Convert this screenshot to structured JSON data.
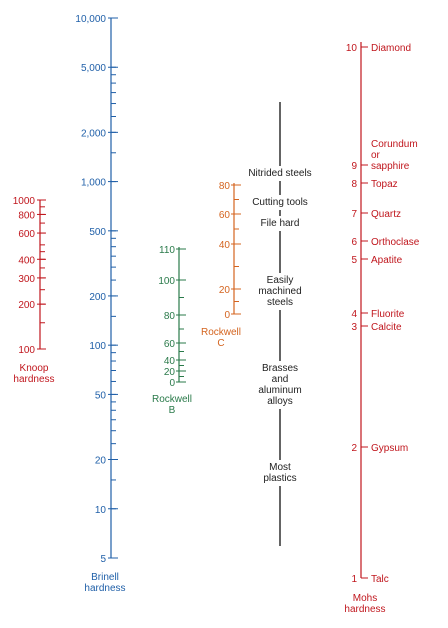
{
  "colors": {
    "brinell": "#1f5fa8",
    "knoop": "#c0161d",
    "mohs": "#c0161d",
    "rockwell_b": "#2a7a4a",
    "rockwell_c": "#d4641f",
    "center": "#222222"
  },
  "brinell": {
    "caption": [
      "Brinell",
      "hardness"
    ],
    "labels": [
      {
        "text": "10,000",
        "value": 10000
      },
      {
        "text": "5,000",
        "value": 5000
      },
      {
        "text": "2,000",
        "value": 2000
      },
      {
        "text": "1,000",
        "value": 1000
      },
      {
        "text": "500",
        "value": 500
      },
      {
        "text": "200",
        "value": 200
      },
      {
        "text": "100",
        "value": 100
      },
      {
        "text": "50",
        "value": 50
      },
      {
        "text": "20",
        "value": 20
      },
      {
        "text": "10",
        "value": 10
      },
      {
        "text": "5",
        "value": 5
      }
    ]
  },
  "knoop": {
    "caption": [
      "Knoop",
      "hardness"
    ],
    "labels": [
      {
        "text": "1000",
        "value": 1000
      },
      {
        "text": "800",
        "value": 800
      },
      {
        "text": "600",
        "value": 600
      },
      {
        "text": "400",
        "value": 400
      },
      {
        "text": "300",
        "value": 300
      },
      {
        "text": "200",
        "value": 200
      },
      {
        "text": "100",
        "value": 100
      }
    ]
  },
  "rockwell_b": {
    "caption": [
      "Rockwell",
      "B"
    ],
    "labels": [
      {
        "text": "110",
        "value": 110
      },
      {
        "text": "100",
        "value": 100
      },
      {
        "text": "80",
        "value": 80
      },
      {
        "text": "60",
        "value": 60
      },
      {
        "text": "40",
        "value": 40
      },
      {
        "text": "20",
        "value": 20
      },
      {
        "text": "0",
        "value": 0
      }
    ]
  },
  "rockwell_c": {
    "caption": [
      "Rockwell",
      "C"
    ],
    "labels": [
      {
        "text": "80",
        "value": 80
      },
      {
        "text": "60",
        "value": 60
      },
      {
        "text": "40",
        "value": 40
      },
      {
        "text": "20",
        "value": 20
      },
      {
        "text": "0",
        "value": 0
      }
    ]
  },
  "materials": [
    {
      "lines": [
        "Nitrided steels"
      ]
    },
    {
      "lines": [
        "Cutting tools"
      ]
    },
    {
      "lines": [
        "File hard"
      ]
    },
    {
      "lines": [
        "Easily",
        "machined",
        "steels"
      ]
    },
    {
      "lines": [
        "Brasses",
        "and",
        "aluminum",
        "alloys"
      ]
    },
    {
      "lines": [
        "Most",
        "plastics"
      ]
    }
  ],
  "mohs": {
    "caption": [
      "Mohs",
      "hardness"
    ],
    "minerals": [
      {
        "value": "10",
        "name": [
          "Diamond"
        ]
      },
      {
        "value": "9",
        "name": [
          "Corundum",
          "or",
          "sapphire"
        ]
      },
      {
        "value": "8",
        "name": [
          "Topaz"
        ]
      },
      {
        "value": "7",
        "name": [
          "Quartz"
        ]
      },
      {
        "value": "6",
        "name": [
          "Orthoclase"
        ]
      },
      {
        "value": "5",
        "name": [
          "Apatite"
        ]
      },
      {
        "value": "4",
        "name": [
          "Fluorite"
        ]
      },
      {
        "value": "3",
        "name": [
          "Calcite"
        ]
      },
      {
        "value": "2",
        "name": [
          "Gypsum"
        ]
      },
      {
        "value": "1",
        "name": [
          "Talc"
        ]
      }
    ]
  }
}
